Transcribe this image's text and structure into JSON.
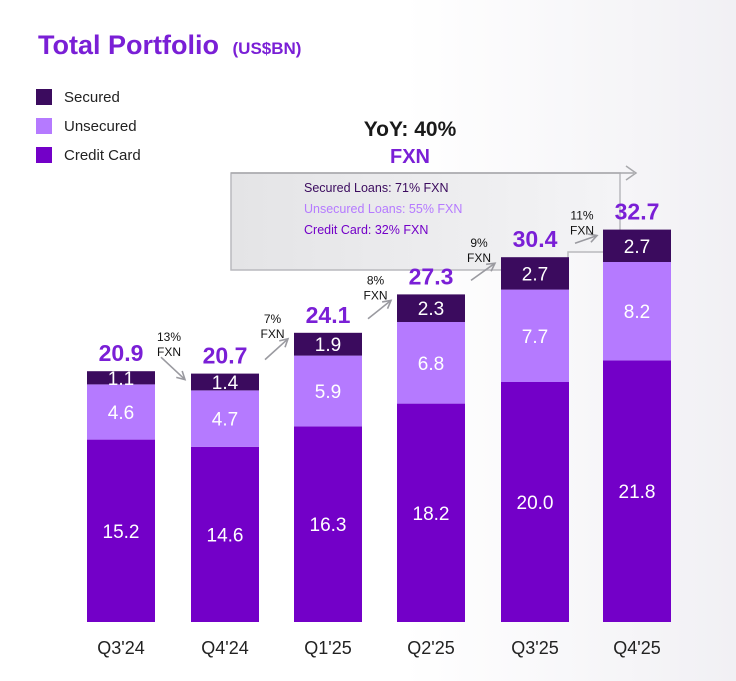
{
  "chart_data": {
    "type": "bar",
    "stacked": true,
    "title": "Total Portfolio",
    "title_unit": "(US$BN)",
    "categories": [
      "Q3'24",
      "Q4'24",
      "Q1'25",
      "Q2'25",
      "Q3'25",
      "Q4'25"
    ],
    "series": [
      {
        "name": "Credit Card",
        "color": "#7300c8",
        "values": [
          15.2,
          14.6,
          16.3,
          18.2,
          20.0,
          21.8
        ]
      },
      {
        "name": "Unsecured",
        "color": "#b57aff",
        "values": [
          4.6,
          4.7,
          5.9,
          6.8,
          7.7,
          8.2
        ]
      },
      {
        "name": "Secured",
        "color": "#3b0b5e",
        "values": [
          1.1,
          1.4,
          1.9,
          2.3,
          2.7,
          2.7
        ]
      }
    ],
    "totals": [
      "20.9",
      "20.7",
      "24.1",
      "27.3",
      "30.4",
      "32.7"
    ],
    "growth_labels": [
      {
        "pct": "13%",
        "unit": "FXN"
      },
      {
        "pct": "7%",
        "unit": "FXN"
      },
      {
        "pct": "8%",
        "unit": "FXN"
      },
      {
        "pct": "9%",
        "unit": "FXN"
      },
      {
        "pct": "11%",
        "unit": "FXN"
      }
    ],
    "legend": {
      "placement": "top-left",
      "order": [
        "Secured",
        "Unsecured",
        "Credit Card"
      ],
      "colors": {
        "Secured": "#3b0b5e",
        "Unsecured": "#b57aff",
        "Credit Card": "#7300c8"
      }
    },
    "yoy": {
      "headline": "YoY: 40%",
      "sub": "FXN",
      "lines": [
        {
          "text": "Secured Loans: 71% FXN",
          "color": "#3b0b5e"
        },
        {
          "text": "Unsecured Loans: 55% FXN",
          "color": "#b57aff"
        },
        {
          "text": "Credit Card: 32% FXN",
          "color": "#7300c8"
        }
      ]
    },
    "grid": false,
    "accent_color": "#7a1fd6"
  }
}
